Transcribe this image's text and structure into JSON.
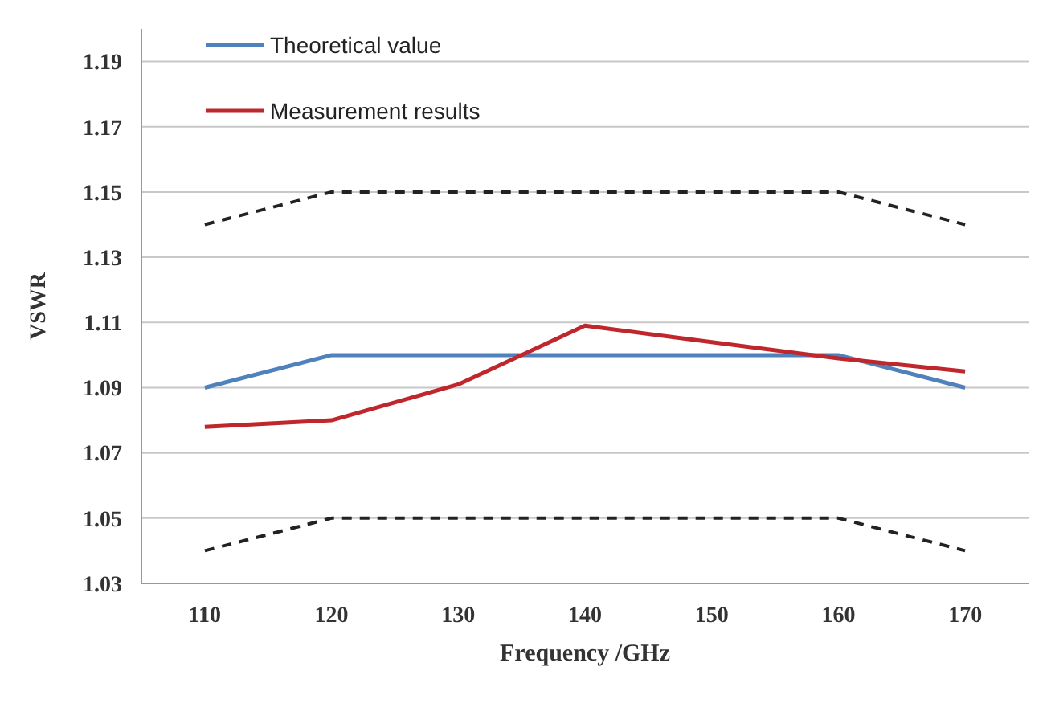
{
  "chart_data": {
    "type": "line",
    "xlabel": "Frequency /GHz",
    "ylabel": "VSWR",
    "categories": [
      "110",
      "120",
      "130",
      "140",
      "150",
      "160",
      "170"
    ],
    "series": [
      {
        "name": "Theoretical value",
        "color": "#4f81bd",
        "values": [
          1.09,
          1.1,
          1.1,
          1.1,
          1.1,
          1.1,
          1.09
        ]
      },
      {
        "name": "Measurement results",
        "color": "#c0272d",
        "values": [
          1.078,
          1.08,
          1.091,
          1.109,
          1.104,
          1.099,
          1.095
        ]
      },
      {
        "color": "#222222",
        "line_style": "dashed",
        "values": [
          1.14,
          1.15,
          1.15,
          1.15,
          1.15,
          1.15,
          1.14
        ]
      },
      {
        "color": "#222222",
        "line_style": "dashed",
        "values": [
          1.04,
          1.05,
          1.05,
          1.05,
          1.05,
          1.05,
          1.04
        ]
      }
    ],
    "ylim": [
      1.03,
      1.2
    ],
    "yticks": [
      1.03,
      1.05,
      1.07,
      1.09,
      1.11,
      1.13,
      1.15,
      1.17,
      1.19
    ],
    "grid": "y",
    "legend": "top left"
  }
}
